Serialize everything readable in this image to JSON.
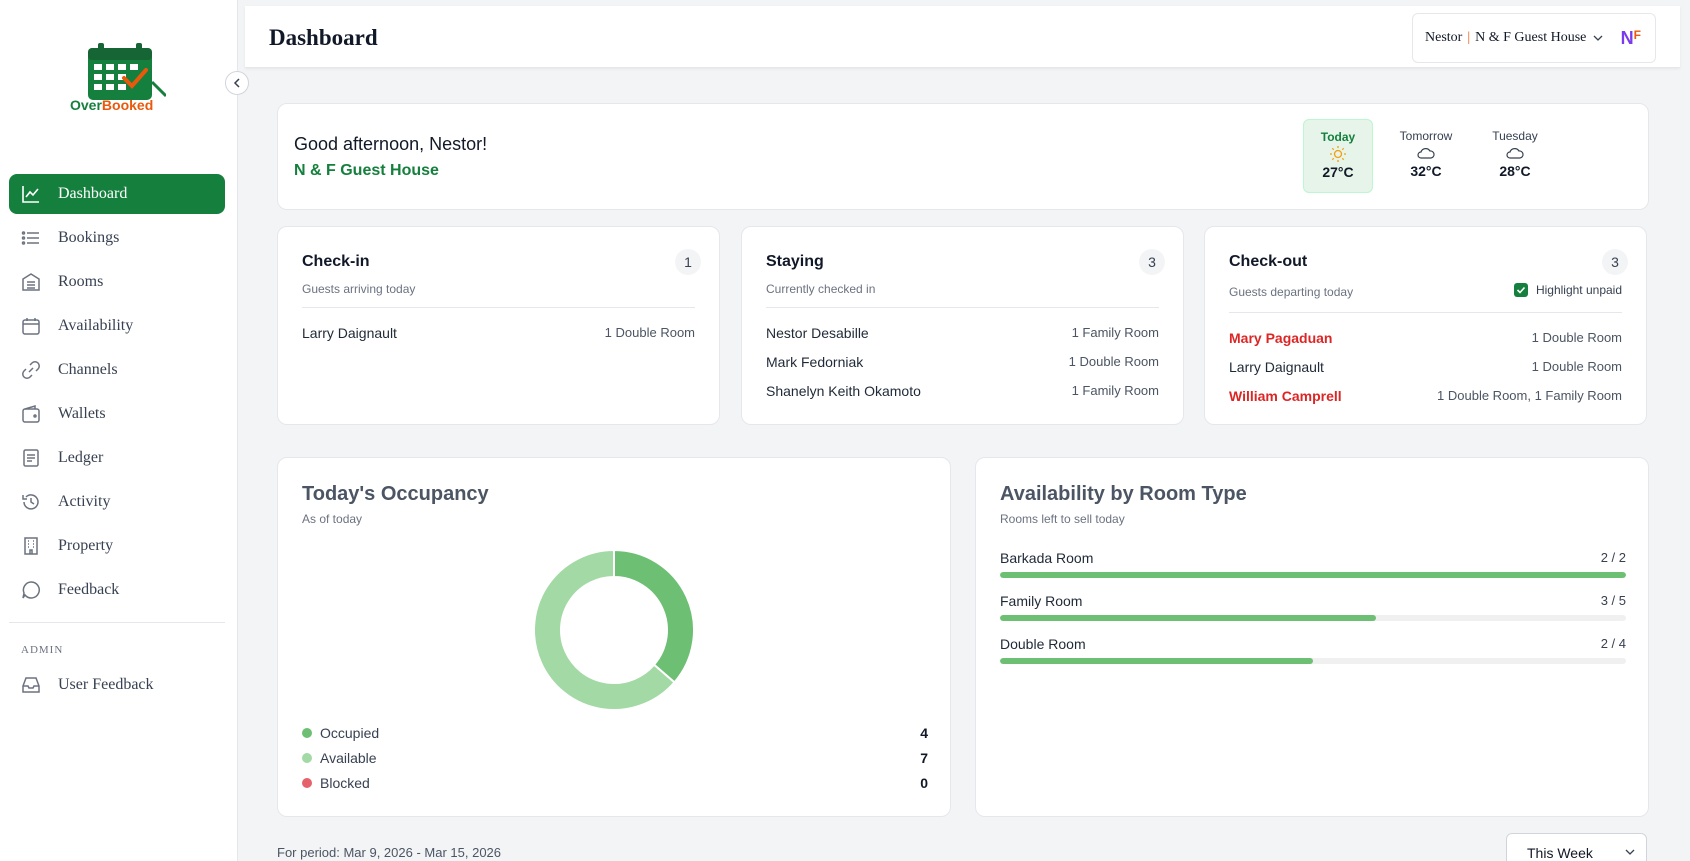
{
  "app": {
    "logo_text_a": "Over",
    "logo_text_b": "Booked",
    "colors": {
      "brand_green": "#15803d",
      "brand_orange": "#ea580c",
      "unpaid_red": "#dc2626",
      "bar_green": "#6dbf73"
    }
  },
  "sidebar": {
    "items": [
      {
        "label": "Dashboard",
        "icon": "chart-line-icon",
        "active": true
      },
      {
        "label": "Bookings",
        "icon": "list-icon"
      },
      {
        "label": "Rooms",
        "icon": "building-icon"
      },
      {
        "label": "Availability",
        "icon": "calendar-icon"
      },
      {
        "label": "Channels",
        "icon": "link-icon"
      },
      {
        "label": "Wallets",
        "icon": "wallet-icon"
      },
      {
        "label": "Ledger",
        "icon": "ledger-icon"
      },
      {
        "label": "Activity",
        "icon": "history-icon"
      },
      {
        "label": "Property",
        "icon": "office-icon"
      },
      {
        "label": "Feedback",
        "icon": "chat-icon"
      }
    ],
    "admin_label": "ADMIN",
    "admin_items": [
      {
        "label": "User Feedback",
        "icon": "inbox-icon"
      }
    ]
  },
  "header": {
    "title": "Dashboard",
    "user": "Nestor",
    "separator": "|",
    "property": "N & F Guest House",
    "brand_letter": "N"
  },
  "greeting": {
    "title": "Good afternoon, Nestor!",
    "property": "N & F Guest House",
    "weather": [
      {
        "label": "Today",
        "icon": "sun-icon",
        "temp": "27°C"
      },
      {
        "label": "Tomorrow",
        "icon": "cloud-icon",
        "temp": "32°C"
      },
      {
        "label": "Tuesday",
        "icon": "cloud-icon",
        "temp": "28°C"
      }
    ]
  },
  "checkin": {
    "title": "Check-in",
    "count": "1",
    "subtitle": "Guests arriving today",
    "rows": [
      {
        "name": "Larry Daignault",
        "room": "1 Double Room"
      }
    ]
  },
  "staying": {
    "title": "Staying",
    "count": "3",
    "subtitle": "Currently checked in",
    "rows": [
      {
        "name": "Nestor Desabille",
        "room": "1 Family Room"
      },
      {
        "name": "Mark Fedorniak",
        "room": "1 Double Room"
      },
      {
        "name": "Shanelyn Keith Okamoto",
        "room": "1 Family Room"
      }
    ]
  },
  "checkout": {
    "title": "Check-out",
    "count": "3",
    "subtitle": "Guests departing today",
    "highlight_label": "Highlight unpaid",
    "highlight_checked": true,
    "rows": [
      {
        "name": "Mary Pagaduan",
        "room": "1 Double Room",
        "unpaid": true
      },
      {
        "name": "Larry Daignault",
        "room": "1 Double Room",
        "unpaid": false
      },
      {
        "name": "William Camprell",
        "room": "1 Double Room, 1 Family Room",
        "unpaid": true
      }
    ]
  },
  "occupancy": {
    "title": "Today's Occupancy",
    "subtitle": "As of today",
    "legend": [
      {
        "label": "Occupied",
        "value": "4",
        "color": "#6dbf73"
      },
      {
        "label": "Available",
        "value": "7",
        "color": "#a3d9a5"
      },
      {
        "label": "Blocked",
        "value": "0",
        "color": "#e5626b"
      }
    ]
  },
  "chart_data": {
    "type": "pie",
    "categories": [
      "Occupied",
      "Available",
      "Blocked"
    ],
    "values": [
      4,
      7,
      0
    ],
    "colors": [
      "#6dbf73",
      "#a3d9a5",
      "#e5626b"
    ],
    "donut": true
  },
  "availability": {
    "title": "Availability by Room Type",
    "subtitle": "Rooms left to sell today",
    "rows": [
      {
        "label": "Barkada Room",
        "count": "2 / 2",
        "fraction": 1.0
      },
      {
        "label": "Family Room",
        "count": "3 / 5",
        "fraction": 0.6
      },
      {
        "label": "Double Room",
        "count": "2 / 4",
        "fraction": 0.5
      }
    ]
  },
  "footer": {
    "period": "For period: Mar 9, 2026 - Mar 15, 2026",
    "range_select": "This Week"
  }
}
